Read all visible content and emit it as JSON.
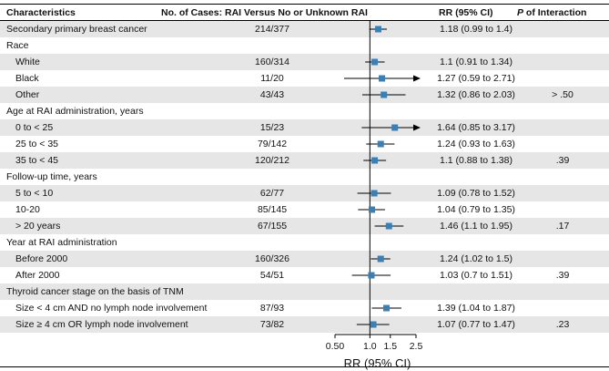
{
  "header": {
    "characteristics": "Characteristics",
    "cases": "No. of Cases: RAI Versus No or Unknown RAI",
    "rr": "RR (95% CI)",
    "interaction_p": "P",
    "interaction_rest": " of Interaction"
  },
  "rows": [
    {
      "label": "Secondary primary breast cancer",
      "indent": 0,
      "cases": "214/377",
      "rr_text": "1.18 (0.99 to 1.4)",
      "p": ""
    },
    {
      "label": "Race",
      "indent": 0,
      "cases": "",
      "rr_text": "",
      "p": ""
    },
    {
      "label": "White",
      "indent": 1,
      "cases": "160/314",
      "rr_text": "1.1 (0.91 to 1.34)",
      "p": ""
    },
    {
      "label": "Black",
      "indent": 1,
      "cases": "11/20",
      "rr_text": "1.27 (0.59 to 2.71)",
      "p": ""
    },
    {
      "label": "Other",
      "indent": 1,
      "cases": "43/43",
      "rr_text": "1.32 (0.86 to 2.03)",
      "p": "> .50"
    },
    {
      "label": "Age at RAI administration, years",
      "indent": 0,
      "cases": "",
      "rr_text": "",
      "p": ""
    },
    {
      "label": "0 to < 25",
      "indent": 1,
      "cases": "15/23",
      "rr_text": "1.64 (0.85 to 3.17)",
      "p": ""
    },
    {
      "label": "25 to < 35",
      "indent": 1,
      "cases": "79/142",
      "rr_text": "1.24 (0.93 to 1.63)",
      "p": ""
    },
    {
      "label": "35 to < 45",
      "indent": 1,
      "cases": "120/212",
      "rr_text": "1.1 (0.88 to 1.38)",
      "p": ".39"
    },
    {
      "label": "Follow-up time, years",
      "indent": 0,
      "cases": "",
      "rr_text": "",
      "p": ""
    },
    {
      "label": "5 to < 10",
      "indent": 1,
      "cases": "62/77",
      "rr_text": "1.09 (0.78 to 1.52)",
      "p": ""
    },
    {
      "label": "10-20",
      "indent": 1,
      "cases": "85/145",
      "rr_text": "1.04 (0.79 to 1.35)",
      "p": ""
    },
    {
      "label": "> 20 years",
      "indent": 1,
      "cases": "67/155",
      "rr_text": "1.46 (1.1 to 1.95)",
      "p": ".17"
    },
    {
      "label": "Year at RAI administration",
      "indent": 0,
      "cases": "",
      "rr_text": "",
      "p": ""
    },
    {
      "label": "Before 2000",
      "indent": 1,
      "cases": "160/326",
      "rr_text": "1.24 (1.02 to 1.5)",
      "p": ""
    },
    {
      "label": "After 2000",
      "indent": 1,
      "cases": "54/51",
      "rr_text": "1.03 (0.7 to 1.51)",
      "p": ".39"
    },
    {
      "label": "Thyroid cancer stage on the basis of TNM",
      "indent": 0,
      "cases": "",
      "rr_text": "",
      "p": ""
    },
    {
      "label": "Size < 4 cm AND no lymph node involvement",
      "indent": 1,
      "cases": "87/93",
      "rr_text": "1.39 (1.04 to 1.87)",
      "p": ""
    },
    {
      "label": "Size ≥ 4 cm OR lymph node involvement",
      "indent": 1,
      "cases": "73/82",
      "rr_text": "1.07 (0.77 to 1.47)",
      "p": ".23"
    }
  ],
  "colors": {
    "marker": "#3b7fb3",
    "stripe": "#e6e6e6",
    "line": "#000000"
  },
  "chart_data": {
    "type": "forest",
    "xscale": "log",
    "xlabel": "RR (95% CI)",
    "xlim": [
      0.5,
      2.5
    ],
    "xticks": [
      0.5,
      1.0,
      1.5,
      2.5
    ],
    "xtick_labels": [
      "0.50",
      "1.0",
      "1.5",
      "2.5"
    ],
    "reference_line": 1.0,
    "points": [
      {
        "label": "Secondary primary breast cancer",
        "rr": 1.18,
        "lo": 0.99,
        "hi": 1.4
      },
      null,
      {
        "label": "White",
        "rr": 1.1,
        "lo": 0.91,
        "hi": 1.34
      },
      {
        "label": "Black",
        "rr": 1.27,
        "lo": 0.59,
        "hi": 2.71
      },
      {
        "label": "Other",
        "rr": 1.32,
        "lo": 0.86,
        "hi": 2.03
      },
      null,
      {
        "label": "0 to < 25",
        "rr": 1.64,
        "lo": 0.85,
        "hi": 3.17
      },
      {
        "label": "25 to < 35",
        "rr": 1.24,
        "lo": 0.93,
        "hi": 1.63
      },
      {
        "label": "35 to < 45",
        "rr": 1.1,
        "lo": 0.88,
        "hi": 1.38
      },
      null,
      {
        "label": "5 to < 10",
        "rr": 1.09,
        "lo": 0.78,
        "hi": 1.52
      },
      {
        "label": "10-20",
        "rr": 1.04,
        "lo": 0.79,
        "hi": 1.35
      },
      {
        "label": "> 20 years",
        "rr": 1.46,
        "lo": 1.1,
        "hi": 1.95
      },
      null,
      {
        "label": "Before 2000",
        "rr": 1.24,
        "lo": 1.02,
        "hi": 1.5
      },
      {
        "label": "After 2000",
        "rr": 1.03,
        "lo": 0.7,
        "hi": 1.51
      },
      null,
      {
        "label": "Size < 4 cm AND no lymph node involvement",
        "rr": 1.39,
        "lo": 1.04,
        "hi": 1.87
      },
      {
        "label": "Size ≥ 4 cm OR lymph node involvement",
        "rr": 1.07,
        "lo": 0.77,
        "hi": 1.47
      }
    ]
  }
}
